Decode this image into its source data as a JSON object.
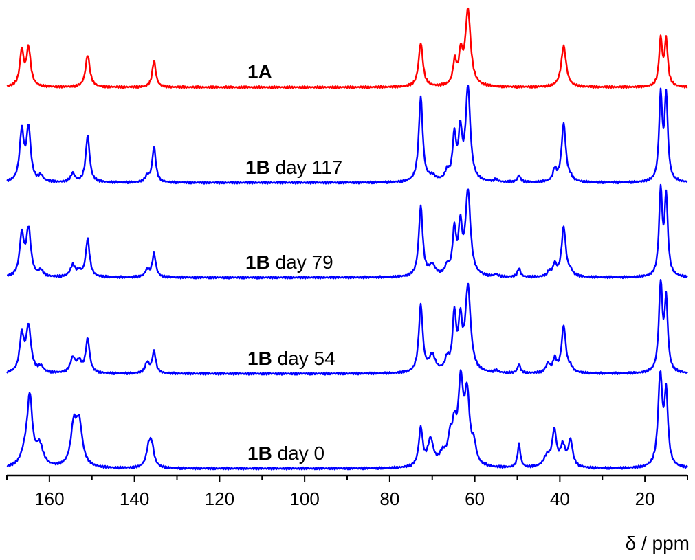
{
  "chart_data": {
    "type": "line",
    "xlabel": "δ / ppm",
    "xlim": [
      170,
      10
    ],
    "x_reversed": true,
    "x_ticks": [
      160,
      140,
      120,
      100,
      80,
      60,
      40,
      20
    ],
    "y_axis_visible": false,
    "grid": false,
    "legend": "none",
    "series": [
      {
        "name": "1A",
        "label_bold": "1A",
        "label_rest": "",
        "color": "#ff0000",
        "peaks": [
          [
            166.5,
            0.6,
            0.55
          ],
          [
            164.9,
            0.65,
            0.6
          ],
          [
            151.0,
            0.55,
            0.6
          ],
          [
            135.4,
            0.45,
            0.5
          ],
          [
            72.7,
            0.75,
            0.6
          ],
          [
            64.7,
            0.4,
            0.5
          ],
          [
            63.3,
            0.5,
            0.5
          ],
          [
            61.6,
            1.3,
            0.75
          ],
          [
            39.1,
            0.7,
            0.7
          ],
          [
            16.3,
            0.8,
            0.45
          ],
          [
            15.0,
            0.78,
            0.45
          ]
        ]
      },
      {
        "name": "1B day 117",
        "label_bold": "1B",
        "label_rest": " day 117",
        "color": "#0000ff",
        "peaks": [
          [
            166.5,
            0.85,
            0.6
          ],
          [
            164.9,
            0.9,
            0.6
          ],
          [
            162.0,
            0.1,
            0.6
          ],
          [
            154.5,
            0.15,
            0.6
          ],
          [
            151.0,
            0.8,
            0.55
          ],
          [
            137.0,
            0.1,
            0.6
          ],
          [
            135.4,
            0.6,
            0.5
          ],
          [
            72.7,
            1.45,
            0.55
          ],
          [
            70.0,
            0.08,
            1.0
          ],
          [
            66.5,
            0.15,
            0.6
          ],
          [
            64.8,
            0.75,
            0.5
          ],
          [
            63.4,
            0.8,
            0.5
          ],
          [
            61.6,
            1.6,
            0.65
          ],
          [
            55.0,
            0.04,
            0.5
          ],
          [
            49.6,
            0.12,
            0.4
          ],
          [
            41.2,
            0.2,
            0.5
          ],
          [
            39.1,
            1.0,
            0.6
          ],
          [
            37.5,
            0.05,
            0.6
          ],
          [
            16.3,
            1.45,
            0.45
          ],
          [
            15.0,
            1.45,
            0.45
          ]
        ]
      },
      {
        "name": "1B day 79",
        "label_bold": "1B",
        "label_rest": " day 79",
        "color": "#0000ff",
        "peaks": [
          [
            166.5,
            0.7,
            0.6
          ],
          [
            164.9,
            0.8,
            0.65
          ],
          [
            162.0,
            0.1,
            0.6
          ],
          [
            154.5,
            0.2,
            0.7
          ],
          [
            153.0,
            0.08,
            0.6
          ],
          [
            151.0,
            0.65,
            0.55
          ],
          [
            137.0,
            0.12,
            0.6
          ],
          [
            135.4,
            0.4,
            0.5
          ],
          [
            72.7,
            1.2,
            0.55
          ],
          [
            70.0,
            0.18,
            0.9
          ],
          [
            66.5,
            0.15,
            0.6
          ],
          [
            64.8,
            0.75,
            0.5
          ],
          [
            63.4,
            0.8,
            0.5
          ],
          [
            61.6,
            1.45,
            0.7
          ],
          [
            55.0,
            0.04,
            0.5
          ],
          [
            49.6,
            0.15,
            0.4
          ],
          [
            42.5,
            0.08,
            0.5
          ],
          [
            41.2,
            0.2,
            0.5
          ],
          [
            39.1,
            0.85,
            0.6
          ],
          [
            37.5,
            0.08,
            0.6
          ],
          [
            16.3,
            1.45,
            0.45
          ],
          [
            15.0,
            1.35,
            0.45
          ]
        ]
      },
      {
        "name": "1B day 54",
        "label_bold": "1B",
        "label_rest": " day 54",
        "color": "#0000ff",
        "peaks": [
          [
            166.5,
            0.62,
            0.6
          ],
          [
            164.9,
            0.78,
            0.7
          ],
          [
            162.0,
            0.1,
            0.7
          ],
          [
            154.5,
            0.25,
            0.7
          ],
          [
            153.0,
            0.18,
            0.7
          ],
          [
            151.0,
            0.58,
            0.55
          ],
          [
            137.0,
            0.18,
            0.6
          ],
          [
            135.4,
            0.37,
            0.5
          ],
          [
            72.7,
            1.15,
            0.55
          ],
          [
            70.0,
            0.28,
            0.9
          ],
          [
            66.5,
            0.2,
            0.6
          ],
          [
            64.8,
            0.95,
            0.5
          ],
          [
            63.4,
            0.8,
            0.5
          ],
          [
            61.6,
            1.45,
            0.75
          ],
          [
            55.0,
            0.04,
            0.5
          ],
          [
            49.6,
            0.15,
            0.4
          ],
          [
            42.8,
            0.15,
            0.6
          ],
          [
            41.2,
            0.22,
            0.5
          ],
          [
            39.1,
            0.8,
            0.6
          ],
          [
            37.5,
            0.08,
            0.6
          ],
          [
            16.3,
            1.5,
            0.5
          ],
          [
            15.0,
            1.2,
            0.45
          ]
        ]
      },
      {
        "name": "1B day 0",
        "label_bold": "1B",
        "label_rest": " day 0",
        "color": "#0000ff",
        "peaks": [
          [
            165.6,
            0.25,
            1.2
          ],
          [
            164.6,
            1.1,
            0.7
          ],
          [
            162.3,
            0.35,
            1.0
          ],
          [
            154.3,
            0.65,
            0.8
          ],
          [
            153.0,
            0.72,
            0.9
          ],
          [
            136.6,
            0.35,
            0.7
          ],
          [
            135.9,
            0.3,
            0.6
          ],
          [
            72.7,
            0.65,
            0.55
          ],
          [
            70.4,
            0.45,
            0.8
          ],
          [
            67.5,
            0.2,
            1.0
          ],
          [
            65.8,
            0.38,
            0.6
          ],
          [
            64.8,
            0.55,
            0.6
          ],
          [
            63.3,
            1.35,
            0.7
          ],
          [
            61.8,
            1.15,
            0.7
          ],
          [
            60.2,
            0.3,
            0.6
          ],
          [
            49.6,
            0.4,
            0.4
          ],
          [
            43.0,
            0.18,
            1.0
          ],
          [
            41.3,
            0.6,
            0.6
          ],
          [
            39.3,
            0.35,
            0.7
          ],
          [
            37.5,
            0.45,
            0.6
          ],
          [
            16.4,
            1.55,
            0.6
          ],
          [
            15.0,
            1.2,
            0.5
          ]
        ]
      }
    ]
  }
}
